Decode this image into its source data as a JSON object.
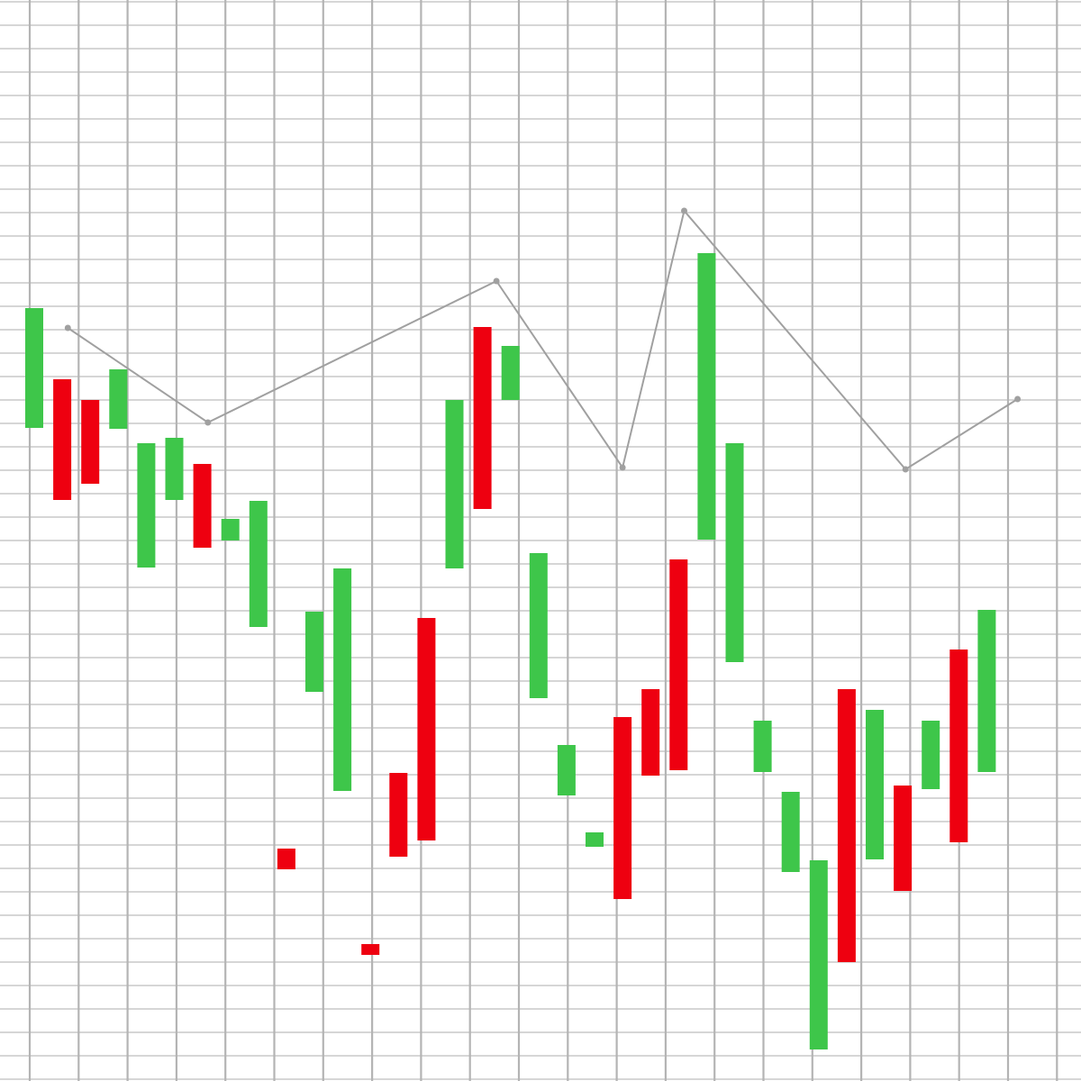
{
  "chart_data": {
    "type": "candlestick",
    "title": "",
    "xlabel": "",
    "ylabel": "",
    "grid": true,
    "ylim": [
      0,
      1200
    ],
    "colors": {
      "up": "#3ec64a",
      "down": "#ee0010",
      "line": "#a0a0a0",
      "grid_minor": "#c8c8c8",
      "grid_major": "#b4b4b4",
      "background": "#ffffff"
    },
    "candles": [
      {
        "index": 0,
        "open": 725,
        "close": 858,
        "direction": "up"
      },
      {
        "index": 1,
        "open": 779,
        "close": 645,
        "direction": "down"
      },
      {
        "index": 2,
        "open": 756,
        "close": 663,
        "direction": "down"
      },
      {
        "index": 3,
        "open": 724,
        "close": 790,
        "direction": "up"
      },
      {
        "index": 4,
        "open": 570,
        "close": 708,
        "direction": "up"
      },
      {
        "index": 5,
        "open": 645,
        "close": 714,
        "direction": "up"
      },
      {
        "index": 6,
        "open": 685,
        "close": 592,
        "direction": "down"
      },
      {
        "index": 7,
        "open": 600,
        "close": 624,
        "direction": "up"
      },
      {
        "index": 8,
        "open": 504,
        "close": 644,
        "direction": "up"
      },
      {
        "index": 9,
        "open": 258,
        "close": 235,
        "direction": "down"
      },
      {
        "index": 10,
        "open": 432,
        "close": 521,
        "direction": "up"
      },
      {
        "index": 11,
        "open": 322,
        "close": 569,
        "direction": "up"
      },
      {
        "index": 12,
        "open": 152,
        "close": 140,
        "direction": "down"
      },
      {
        "index": 13,
        "open": 342,
        "close": 249,
        "direction": "down"
      },
      {
        "index": 14,
        "open": 514,
        "close": 267,
        "direction": "down"
      },
      {
        "index": 15,
        "open": 569,
        "close": 756,
        "direction": "up"
      },
      {
        "index": 16,
        "open": 837,
        "close": 635,
        "direction": "down"
      },
      {
        "index": 17,
        "open": 756,
        "close": 816,
        "direction": "up"
      },
      {
        "index": 18,
        "open": 425,
        "close": 586,
        "direction": "up"
      },
      {
        "index": 19,
        "open": 317,
        "close": 373,
        "direction": "up"
      },
      {
        "index": 20,
        "open": 260,
        "close": 276,
        "direction": "up"
      },
      {
        "index": 21,
        "open": 404,
        "close": 202,
        "direction": "down"
      },
      {
        "index": 22,
        "open": 435,
        "close": 339,
        "direction": "down"
      },
      {
        "index": 23,
        "open": 579,
        "close": 345,
        "direction": "down"
      },
      {
        "index": 24,
        "open": 601,
        "close": 919,
        "direction": "up"
      },
      {
        "index": 25,
        "open": 465,
        "close": 708,
        "direction": "up"
      },
      {
        "index": 26,
        "open": 343,
        "close": 400,
        "direction": "up"
      },
      {
        "index": 27,
        "open": 232,
        "close": 321,
        "direction": "up"
      },
      {
        "index": 28,
        "open": 35,
        "close": 245,
        "direction": "up"
      },
      {
        "index": 29,
        "open": 435,
        "close": 132,
        "direction": "down"
      },
      {
        "index": 30,
        "open": 246,
        "close": 412,
        "direction": "up"
      },
      {
        "index": 31,
        "open": 328,
        "close": 211,
        "direction": "down"
      },
      {
        "index": 32,
        "open": 324,
        "close": 400,
        "direction": "up"
      },
      {
        "index": 33,
        "open": 479,
        "close": 265,
        "direction": "down"
      },
      {
        "index": 34,
        "open": 343,
        "close": 523,
        "direction": "up"
      }
    ],
    "line": [
      {
        "index": 1.2,
        "value": 836
      },
      {
        "index": 6.2,
        "value": 731
      },
      {
        "index": 16.5,
        "value": 888
      },
      {
        "index": 21.0,
        "value": 681
      },
      {
        "index": 23.2,
        "value": 966
      },
      {
        "index": 31.1,
        "value": 679
      },
      {
        "index": 35.1,
        "value": 757
      }
    ]
  }
}
